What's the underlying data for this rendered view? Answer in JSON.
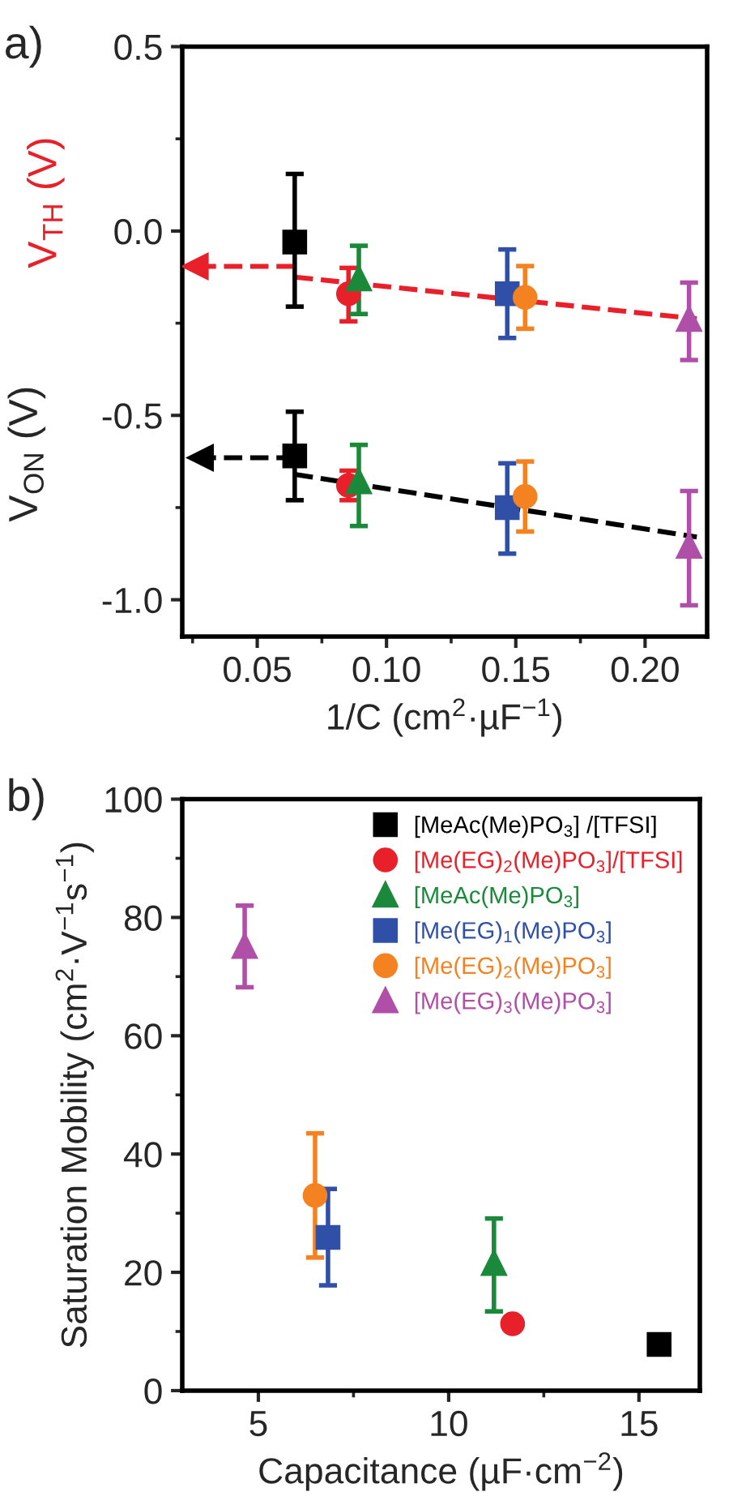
{
  "chart_data": [
    {
      "type": "scatter",
      "title": "a)",
      "xlabel": "1/C (cm$^{2}$·µF$^{−1}$)",
      "ylabel": "V$_{ON}$ (V)",
      "annotations": [
        "V$_{TH}$ (V)"
      ],
      "xlim": [
        0.021,
        0.224
      ],
      "xticks": [
        {
          "value": 0.05,
          "label": "0.05"
        },
        {
          "value": 0.1,
          "label": "0.10"
        },
        {
          "value": 0.15,
          "label": "0.15"
        },
        {
          "value": 0.2,
          "label": "0.20"
        }
      ],
      "ylim": [
        -1.1,
        0.5
      ],
      "yticks": [
        {
          "value": 0.5,
          "label": "0.5"
        },
        {
          "value": 0.0,
          "label": "0.0"
        },
        {
          "value": -0.5,
          "label": "-0.5"
        },
        {
          "value": -1.0,
          "label": "-1.0"
        }
      ],
      "grid": false,
      "legend": false,
      "series": [
        {
          "type": "line",
          "color": "#e8202a",
          "line_style": "dashed",
          "marker": "none",
          "x": [
            0.0645,
            0.22
          ],
          "values": [
            -0.125,
            -0.238
          ]
        },
        {
          "type": "line",
          "color": "#e8202a",
          "line_style": "dashed",
          "marker": "triangle",
          "x": [
            0.0645,
            0.026
          ],
          "values": [
            -0.096,
            -0.096
          ]
        },
        {
          "type": "line",
          "color": "#000000",
          "line_style": "dashed",
          "marker": "none",
          "x": [
            0.0645,
            0.22
          ],
          "values": [
            -0.66,
            -0.83
          ]
        },
        {
          "type": "line",
          "color": "#000000",
          "line_style": "dashed",
          "marker": "triangle",
          "x": [
            0.0645,
            0.028
          ],
          "values": [
            -0.615,
            -0.615
          ]
        },
        {
          "color": "#000000",
          "marker": "square",
          "x": [
            0.0645,
            0.0645
          ],
          "values": [
            -0.03,
            -0.61
          ],
          "errors": [
            [
              -0.205,
              0.155
            ],
            [
              -0.73,
              -0.49
            ]
          ]
        },
        {
          "color": "#e8202a",
          "marker": "circle",
          "x": [
            0.0853,
            0.0853
          ],
          "values": [
            -0.17,
            -0.69
          ],
          "errors": [
            [
              -0.245,
              -0.1
            ],
            [
              -0.73,
              -0.65
            ]
          ]
        },
        {
          "color": "#1a8a3a",
          "marker": "triangle",
          "x": [
            0.0893,
            0.0893
          ],
          "values": [
            -0.13,
            -0.68
          ],
          "errors": [
            [
              -0.225,
              -0.04
            ],
            [
              -0.8,
              -0.58
            ]
          ]
        },
        {
          "color": "#3050a8",
          "marker": "square",
          "x": [
            0.1467,
            0.1467
          ],
          "values": [
            -0.17,
            -0.75
          ],
          "errors": [
            [
              -0.29,
              -0.05
            ],
            [
              -0.875,
              -0.63
            ]
          ]
        },
        {
          "color": "#f58220",
          "marker": "circle",
          "x": [
            0.1536,
            0.1536
          ],
          "values": [
            -0.18,
            -0.72
          ],
          "errors": [
            [
              -0.265,
              -0.095
            ],
            [
              -0.815,
              -0.625
            ]
          ]
        },
        {
          "color": "#b04fa8",
          "marker": "triangle",
          "x": [
            0.217,
            0.217
          ],
          "values": [
            -0.24,
            -0.855
          ],
          "errors": [
            [
              -0.35,
              -0.14
            ],
            [
              -1.015,
              -0.705
            ]
          ]
        }
      ]
    },
    {
      "type": "scatter",
      "title": "b)",
      "xlabel": "Capacitance (µF·cm$^{−2}$)",
      "ylabel": "Saturation Mobility (cm$^{2}$·V$^{−1}$s$^{−1}$)",
      "xlim": [
        3,
        16.6
      ],
      "xticks": [
        5,
        10,
        15
      ],
      "ylim": [
        0,
        100
      ],
      "yticks": [
        0,
        20,
        40,
        60,
        80,
        100
      ],
      "grid": false,
      "legend": "top right",
      "series": [
        {
          "name": "[MeAc(Me)PO$_{3}$] /[TFSI]",
          "color": "#000000",
          "marker": "square",
          "x": [
            15.53
          ],
          "values": [
            7.8
          ]
        },
        {
          "name": "[Me(EG)$_{2}$(Me)PO$_{3}$]/[TFSI]",
          "color": "#e8202a",
          "marker": "circle",
          "x": [
            11.68
          ],
          "values": [
            11.3
          ],
          "errors": [
            [
              10.2,
              12.4
            ]
          ]
        },
        {
          "name": "[MeAc(Me)PO$_{3}$]",
          "color": "#1a8a3a",
          "marker": "triangle",
          "x": [
            11.19
          ],
          "values": [
            21.5
          ],
          "errors": [
            [
              13.4,
              29.1
            ]
          ]
        },
        {
          "name": "[Me(EG)$_{1}$(Me)PO$_{3}$]",
          "color": "#3050a8",
          "marker": "square",
          "x": [
            6.83
          ],
          "values": [
            25.9
          ],
          "errors": [
            [
              17.8,
              34.1
            ]
          ]
        },
        {
          "name": "[Me(EG)$_{2}$(Me)PO$_{3}$]",
          "color": "#f58220",
          "marker": "circle",
          "x": [
            6.49
          ],
          "values": [
            33.0
          ],
          "errors": [
            [
              22.5,
              43.5
            ]
          ]
        },
        {
          "name": "[Me(EG)$_{3}$(Me)PO$_{3}$]",
          "color": "#b04fa8",
          "marker": "triangle",
          "x": [
            4.64
          ],
          "values": [
            75.1
          ],
          "errors": [
            [
              68.2,
              82.0
            ]
          ]
        }
      ]
    }
  ]
}
